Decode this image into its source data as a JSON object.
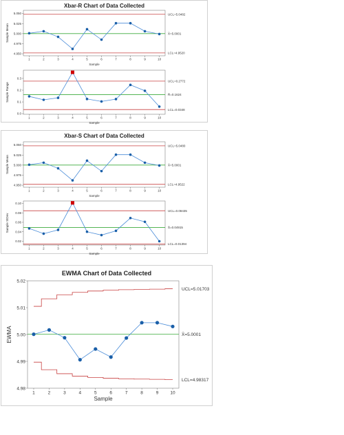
{
  "charts": {
    "xbar_r_title": "Xbar-R Chart of Data Collected",
    "xbar_s_title": "Xbar-S Chart of Data Collected",
    "ewma_title": "EWMA Chart of Data Collected"
  },
  "chart_data": [
    {
      "id": "xr-mean",
      "type": "line",
      "xlabel": "Sample",
      "ylabel": "Sample Mean",
      "x": [
        1,
        2,
        3,
        4,
        5,
        6,
        7,
        8,
        9,
        10
      ],
      "series": [
        {
          "values": [
            5.001,
            5.006,
            4.992,
            4.962,
            5.011,
            4.985,
            5.026,
            5.026,
            5.006,
            4.999
          ]
        }
      ],
      "ylim": [
        4.945,
        5.058
      ],
      "yticks": [
        "5.050",
        "5.025",
        "5.000",
        "4.975",
        "4.950"
      ],
      "ytick_values": [
        5.05,
        5.025,
        5.0,
        4.975,
        4.95
      ],
      "xticks": [
        "1",
        "2",
        "3",
        "4",
        "5",
        "6",
        "7",
        "8",
        "9",
        "10"
      ],
      "ucl": 5.0482,
      "center": 5.0001,
      "lcl": 4.952,
      "ucl_label": "UCL=5.0482",
      "center_label": "X̄=5.0001",
      "lcl_label": "LCL=4.9520",
      "out_of_control": [],
      "grid": false
    },
    {
      "id": "xr-range",
      "type": "line",
      "xlabel": "Sample",
      "ylabel": "Sample Range",
      "x": [
        1,
        2,
        3,
        4,
        5,
        6,
        7,
        8,
        9,
        10
      ],
      "series": [
        {
          "values": [
            0.147,
            0.118,
            0.135,
            0.352,
            0.125,
            0.104,
            0.124,
            0.245,
            0.195,
            0.06
          ]
        }
      ],
      "ylim": [
        -0.005,
        0.37
      ],
      "yticks": [
        "0.3",
        "0.2",
        "0.1",
        "0.0"
      ],
      "ytick_values": [
        0.3,
        0.2,
        0.1,
        0.0
      ],
      "xticks": [
        "1",
        "2",
        "3",
        "4",
        "5",
        "6",
        "7",
        "8",
        "9",
        "10"
      ],
      "ucl": 0.2772,
      "center": 0.1624,
      "lcl": 0.0348,
      "ucl_label": "UCL=0.2772",
      "center_label": "R̄=0.1624",
      "lcl_label": "LCL=0.0348",
      "out_of_control": [
        4
      ],
      "grid": false
    },
    {
      "id": "xs-mean",
      "type": "line",
      "xlabel": "Sample",
      "ylabel": "Sample Mean",
      "x": [
        1,
        2,
        3,
        4,
        5,
        6,
        7,
        8,
        9,
        10
      ],
      "series": [
        {
          "values": [
            5.001,
            5.006,
            4.992,
            4.962,
            5.011,
            4.985,
            5.026,
            5.026,
            5.006,
            4.999
          ]
        }
      ],
      "ylim": [
        4.945,
        5.058
      ],
      "yticks": [
        "5.050",
        "5.025",
        "5.000",
        "4.975",
        "4.950"
      ],
      "ytick_values": [
        5.05,
        5.025,
        5.0,
        4.975,
        4.95
      ],
      "xticks": [
        "1",
        "2",
        "3",
        "4",
        "5",
        "6",
        "7",
        "8",
        "9",
        "10"
      ],
      "ucl": 5.048,
      "center": 5.0001,
      "lcl": 4.9522,
      "ucl_label": "UCL=5.0480",
      "center_label": "X̄=5.0001",
      "lcl_label": "LCL=4.9522",
      "out_of_control": [],
      "grid": false
    },
    {
      "id": "xs-sd",
      "type": "line",
      "xlabel": "Sample",
      "ylabel": "Sample StDev",
      "x": [
        1,
        2,
        3,
        4,
        5,
        6,
        7,
        8,
        9,
        10
      ],
      "series": [
        {
          "values": [
            0.047,
            0.036,
            0.044,
            0.101,
            0.04,
            0.033,
            0.042,
            0.069,
            0.061,
            0.02
          ]
        }
      ],
      "ylim": [
        0.012,
        0.105
      ],
      "yticks": [
        "0.10",
        "0.08",
        "0.06",
        "0.04",
        "0.02"
      ],
      "ytick_values": [
        0.1,
        0.08,
        0.06,
        0.04,
        0.02
      ],
      "xticks": [
        "1",
        "2",
        "3",
        "4",
        "5",
        "6",
        "7",
        "8",
        "9",
        "10"
      ],
      "ucl": 0.08435,
      "center": 0.04915,
      "lcl": 0.01394,
      "ucl_label": "UCL=0.08435",
      "center_label": "S̄=0.04915",
      "lcl_label": "LCL=0.01394",
      "out_of_control": [
        4
      ],
      "grid": false
    },
    {
      "id": "ewma",
      "type": "line",
      "xlabel": "Sample",
      "ylabel": "EWMA",
      "x": [
        1,
        2,
        3,
        4,
        5,
        6,
        7,
        8,
        9,
        10
      ],
      "series": [
        {
          "values": [
            5.0001,
            5.0017,
            4.9988,
            4.9906,
            4.9946,
            4.9916,
            4.9987,
            5.0044,
            5.0044,
            5.003
          ]
        }
      ],
      "ylim": [
        4.98,
        5.02
      ],
      "yticks": [
        "5.02",
        "5.01",
        "5.00",
        "4.99",
        "4.98"
      ],
      "ytick_values": [
        5.02,
        5.01,
        5.0,
        4.99,
        4.98
      ],
      "xticks": [
        "1",
        "2",
        "3",
        "4",
        "5",
        "6",
        "7",
        "8",
        "9",
        "10"
      ],
      "center": 5.0001,
      "ucl_steps": [
        5.0105,
        5.0133,
        5.0148,
        5.0157,
        5.0162,
        5.0165,
        5.0167,
        5.0168,
        5.0169,
        5.01703
      ],
      "lcl_steps": [
        4.9897,
        4.9869,
        4.9854,
        4.9845,
        4.984,
        4.9837,
        4.9835,
        4.9834,
        4.9833,
        4.98317
      ],
      "ucl_label": "UCL=5.01703",
      "center_label": "X̄=5.0001",
      "lcl_label": "LCL=4.98317",
      "grid": false
    }
  ],
  "colors": {
    "ucl_lcl": "#c84040",
    "center": "#3aaa3a",
    "series": "#4a8cd8",
    "marker": "#1a5fa8",
    "out_of_control": "#d00000",
    "axis": "#666666"
  }
}
